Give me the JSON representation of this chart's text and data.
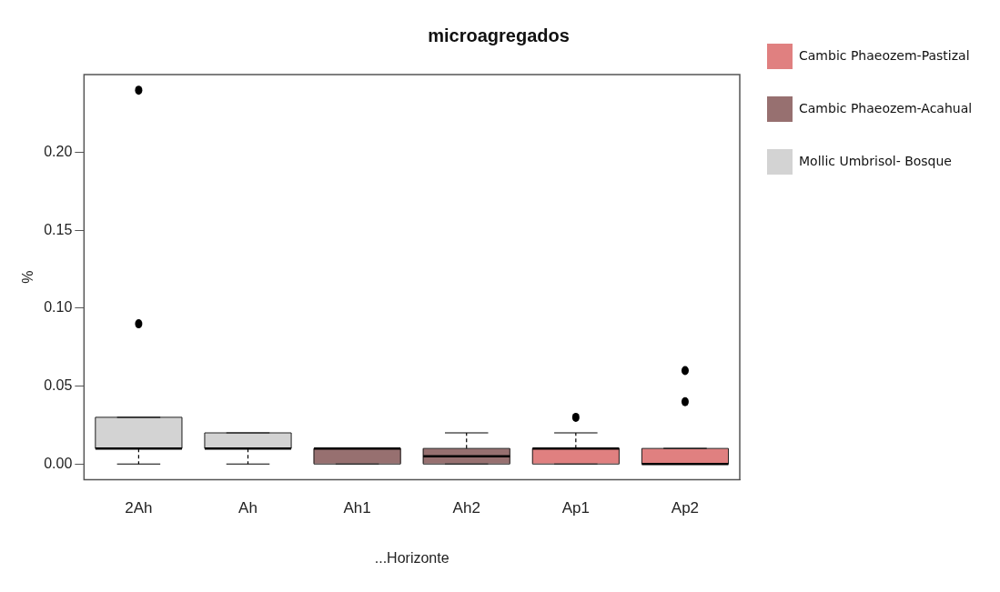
{
  "chart_data": {
    "type": "box",
    "title": "microagregados",
    "xlabel": "...Horizonte",
    "ylabel": "%",
    "categories": [
      "2Ah",
      "Ah",
      "Ah1",
      "Ah2",
      "Ap1",
      "Ap2"
    ],
    "ylim": [
      -0.01,
      0.25
    ],
    "yticks": [
      {
        "value": 0,
        "label": "0.00"
      },
      {
        "value": 0.05,
        "label": "0.05"
      },
      {
        "value": 0.1,
        "label": "0.10"
      },
      {
        "value": 0.15,
        "label": "0.15"
      },
      {
        "value": 0.2,
        "label": "0.20"
      }
    ],
    "grid": false,
    "legend": "right",
    "series": [
      {
        "name": "Cambic Phaeozem-Pastizal",
        "color": "#e08080",
        "boxes": [
          null,
          null,
          null,
          null,
          {
            "low": 0,
            "q1": 0,
            "median": 0.01,
            "q3": 0.01,
            "high": 0.02,
            "outliers": [
              0.03
            ]
          },
          {
            "low": 0,
            "q1": 0,
            "median": 0,
            "q3": 0.01,
            "high": 0.01,
            "outliers": [
              0.04,
              0.06
            ]
          }
        ]
      },
      {
        "name": "Cambic Phaeozem-Acahual",
        "color": "#977070",
        "boxes": [
          null,
          null,
          {
            "low": 0,
            "q1": 0,
            "median": 0.01,
            "q3": 0.01,
            "high": 0.01
          },
          {
            "low": 0,
            "q1": 0,
            "median": 0.005,
            "q3": 0.01,
            "high": 0.02
          },
          null,
          null
        ]
      },
      {
        "name": "Mollic Umbrisol- Bosque",
        "color": "#d3d3d3",
        "boxes": [
          {
            "low": 0,
            "q1": 0.01,
            "median": 0.01,
            "q3": 0.03,
            "high": 0.03,
            "outliers": [
              0.09,
              0.24
            ]
          },
          {
            "low": 0,
            "q1": 0.01,
            "median": 0.01,
            "q3": 0.02,
            "high": 0.02
          },
          null,
          null,
          null,
          null
        ]
      }
    ]
  }
}
